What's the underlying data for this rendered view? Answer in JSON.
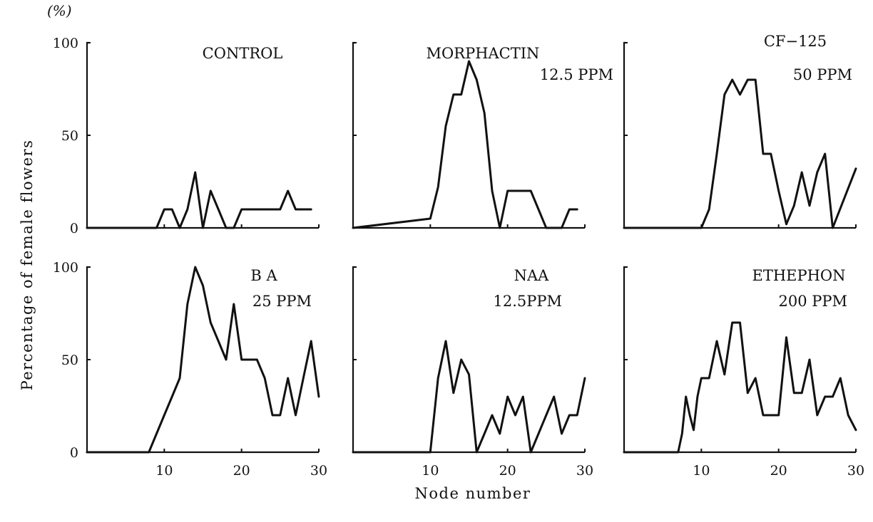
{
  "chart_data": {
    "type": "line",
    "unit_label": "(%)",
    "ylabel": "Percentage of female flowers",
    "xlabel": "Node number",
    "xlim": [
      0,
      30
    ],
    "ylim": [
      0,
      100
    ],
    "x_ticks": [
      10,
      20,
      30
    ],
    "y_ticks": [
      0,
      50,
      100
    ],
    "panels": [
      {
        "title": "CONTROL",
        "subtitle": "",
        "row": 0,
        "col": 0,
        "show_y_labels": true,
        "show_x_labels": false,
        "x": [
          0,
          9,
          10,
          11,
          12,
          13,
          14,
          15,
          16,
          17,
          18,
          19,
          20,
          21,
          22,
          23,
          24,
          25,
          26,
          27,
          28,
          29
        ],
        "y": [
          0,
          0,
          10,
          10,
          0,
          10,
          30,
          0,
          20,
          10,
          0,
          0,
          10,
          10,
          10,
          10,
          10,
          10,
          20,
          10,
          10,
          10
        ]
      },
      {
        "title": "MORPHACTIN",
        "subtitle": "12.5 PPM",
        "row": 0,
        "col": 1,
        "show_y_labels": false,
        "show_x_labels": false,
        "x": [
          0,
          10,
          11,
          12,
          13,
          14,
          15,
          16,
          17,
          18,
          19,
          20,
          21,
          22,
          23,
          24,
          25,
          26,
          27,
          28,
          29
        ],
        "y": [
          0,
          5,
          22,
          55,
          72,
          72,
          90,
          80,
          62,
          20,
          0,
          20,
          20,
          20,
          20,
          10,
          0,
          0,
          0,
          10,
          10
        ]
      },
      {
        "title": "CF−125",
        "subtitle": "50 PPM",
        "row": 0,
        "col": 2,
        "show_y_labels": false,
        "show_x_labels": false,
        "x": [
          0,
          10,
          11,
          12,
          13,
          14,
          15,
          16,
          17,
          18,
          19,
          20,
          21,
          22,
          23,
          24,
          25,
          26,
          27,
          30
        ],
        "y": [
          0,
          0,
          10,
          40,
          72,
          80,
          72,
          80,
          80,
          40,
          40,
          20,
          2,
          12,
          30,
          12,
          30,
          40,
          0,
          32
        ]
      },
      {
        "title": "B A",
        "subtitle": "25 PPM",
        "row": 1,
        "col": 0,
        "show_y_labels": true,
        "show_x_labels": true,
        "x": [
          0,
          8,
          9,
          10,
          11,
          12,
          13,
          14,
          15,
          16,
          17,
          18,
          19,
          20,
          21,
          22,
          23,
          24,
          25,
          26,
          27,
          28,
          29,
          30
        ],
        "y": [
          0,
          0,
          10,
          20,
          30,
          40,
          80,
          100,
          90,
          70,
          60,
          50,
          80,
          50,
          50,
          50,
          40,
          20,
          20,
          40,
          20,
          40,
          60,
          30
        ]
      },
      {
        "title": "NAA",
        "subtitle": "12.5PPM",
        "row": 1,
        "col": 1,
        "show_y_labels": false,
        "show_x_labels": true,
        "x": [
          0,
          10,
          11,
          12,
          13,
          14,
          15,
          16,
          17,
          18,
          19,
          20,
          21,
          22,
          23,
          24,
          25,
          26,
          27,
          28,
          29,
          30
        ],
        "y": [
          0,
          0,
          40,
          60,
          32,
          50,
          42,
          0,
          10,
          20,
          10,
          30,
          20,
          30,
          0,
          10,
          20,
          30,
          10,
          20,
          20,
          40
        ]
      },
      {
        "title": "ETHEPHON",
        "subtitle": "200 PPM",
        "row": 1,
        "col": 2,
        "show_y_labels": false,
        "show_x_labels": true,
        "x": [
          0,
          7,
          7.5,
          8,
          8.5,
          9,
          9.5,
          10,
          11,
          12,
          13,
          14,
          15,
          16,
          17,
          18,
          19,
          20,
          21,
          22,
          23,
          24,
          25,
          26,
          27,
          28,
          29,
          30
        ],
        "y": [
          0,
          0,
          10,
          30,
          20,
          12,
          30,
          40,
          40,
          60,
          42,
          70,
          70,
          32,
          40,
          20,
          20,
          20,
          62,
          32,
          32,
          50,
          20,
          30,
          30,
          40,
          20,
          12
        ]
      }
    ]
  }
}
